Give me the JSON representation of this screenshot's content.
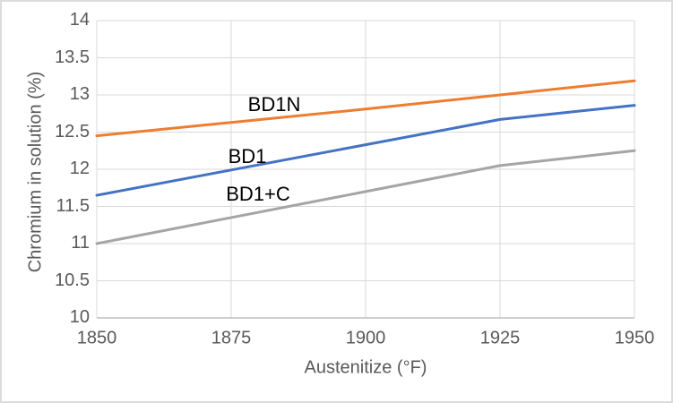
{
  "styles": {
    "background": "#FFFFFF",
    "frame_border_color": "#DCDCDC",
    "grid_color": "#D9D9D9",
    "axis_line_color": "#BFBFBF",
    "tick_label_color": "#595959",
    "series_label_color": "#000000"
  },
  "chart_data": {
    "type": "line",
    "xlabel": "Austenitize (°F)",
    "ylabel": "Chromium in solution (%)",
    "x": [
      1850,
      1875,
      1900,
      1925,
      1950
    ],
    "xlim": [
      1850,
      1950
    ],
    "ylim": [
      10,
      14
    ],
    "x_ticks": [
      1850,
      1875,
      1900,
      1925,
      1950
    ],
    "y_ticks": [
      10,
      10.5,
      11,
      11.5,
      12,
      12.5,
      13,
      13.5,
      14
    ],
    "grid": true,
    "legend": "inline-series-labels",
    "series": [
      {
        "name": "BD1N",
        "color": "#ED7D31",
        "values": [
          12.45,
          12.63,
          12.81,
          13.0,
          13.19
        ],
        "label_at": {
          "x": 1883,
          "y": 12.87
        }
      },
      {
        "name": "BD1",
        "color": "#4472C4",
        "values": [
          11.65,
          11.99,
          12.33,
          12.67,
          12.86
        ],
        "label_at": {
          "x": 1878,
          "y": 12.17
        }
      },
      {
        "name": "BD1+C",
        "color": "#A5A5A5",
        "values": [
          11.0,
          11.35,
          11.7,
          12.05,
          12.25
        ],
        "label_at": {
          "x": 1880,
          "y": 11.66
        }
      }
    ]
  }
}
